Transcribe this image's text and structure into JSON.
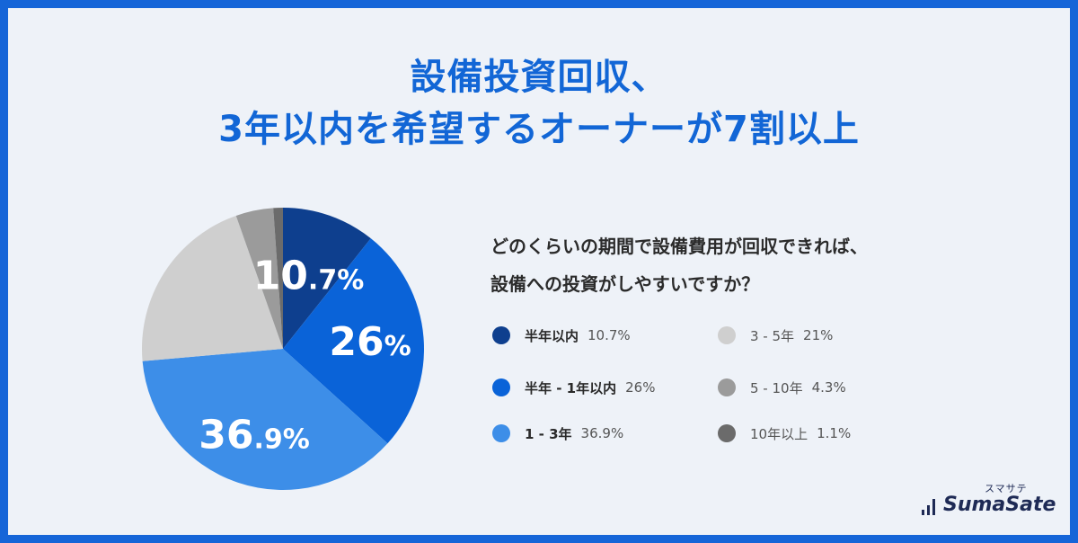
{
  "title": {
    "line1": "設備投資回収、",
    "line2": "3年以内を希望するオーナーが7割以上"
  },
  "question": {
    "line1": "どのくらいの期間で設備費用が回収できれば、",
    "line2": "設備への投資がしやすいですか？"
  },
  "chart_data": {
    "type": "pie",
    "title": "",
    "slices": [
      {
        "label": "半年以内",
        "value": 10.7,
        "display": "10.7%",
        "color": "#0e3f8e"
      },
      {
        "label": "半年 - 1年以内",
        "value": 26,
        "display": "26%",
        "color": "#0a63d8"
      },
      {
        "label": "1 - 3年",
        "value": 36.9,
        "display": "36.9%",
        "color": "#3d8ee8"
      },
      {
        "label": "3 - 5年",
        "value": 21,
        "display": "21%",
        "color": "#cfcfcf"
      },
      {
        "label": "5 - 10年",
        "value": 4.3,
        "display": "4.3%",
        "color": "#9b9b9b"
      },
      {
        "label": "10年以上",
        "value": 1.1,
        "display": "1.1%",
        "color": "#6b6b6b"
      }
    ],
    "slice_labels": [
      {
        "slice": 0,
        "big": "10",
        "small": ".7%"
      },
      {
        "slice": 1,
        "big": "26",
        "small": "%"
      },
      {
        "slice": 2,
        "big": "36",
        "small": ".9%"
      }
    ]
  },
  "legend": [
    {
      "label": "半年以内",
      "value": "10.7%",
      "color": "#0e3f8e"
    },
    {
      "label": "半年 - 1年以内",
      "value": "26%",
      "color": "#0a63d8"
    },
    {
      "label": "1 - 3年",
      "value": "36.9%",
      "color": "#3d8ee8"
    },
    {
      "label": "3 - 5年",
      "value": "21%",
      "color": "#cfcfcf"
    },
    {
      "label": "5 - 10年",
      "value": "4.3%",
      "color": "#9b9b9b"
    },
    {
      "label": "10年以上",
      "value": "1.1%",
      "color": "#6b6b6b"
    }
  ],
  "logo": {
    "kana": "スマサテ",
    "text": "SumaSate"
  }
}
